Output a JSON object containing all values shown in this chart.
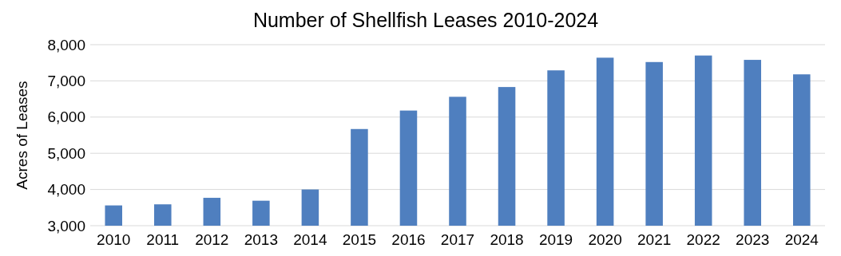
{
  "chart_data": {
    "type": "bar",
    "title": "Number of Shellfish Leases 2010-2024",
    "ylabel": "Acres of Leases",
    "categories": [
      "2010",
      "2011",
      "2012",
      "2013",
      "2014",
      "2015",
      "2016",
      "2017",
      "2018",
      "2019",
      "2020",
      "2021",
      "2022",
      "2023",
      "2024"
    ],
    "values": [
      3560,
      3590,
      3770,
      3690,
      4000,
      5670,
      6180,
      6560,
      6830,
      7290,
      7640,
      7520,
      7700,
      7580,
      7180
    ],
    "color": "#4f7fbf",
    "ylim": [
      3000,
      8000
    ],
    "yticks": [
      {
        "value": 3000,
        "label": "3,000"
      },
      {
        "value": 4000,
        "label": "4,000"
      },
      {
        "value": 5000,
        "label": "5,000"
      },
      {
        "value": 6000,
        "label": "6,000"
      },
      {
        "value": 7000,
        "label": "7,000"
      },
      {
        "value": 8000,
        "label": "8,000"
      }
    ],
    "grid": "y"
  }
}
